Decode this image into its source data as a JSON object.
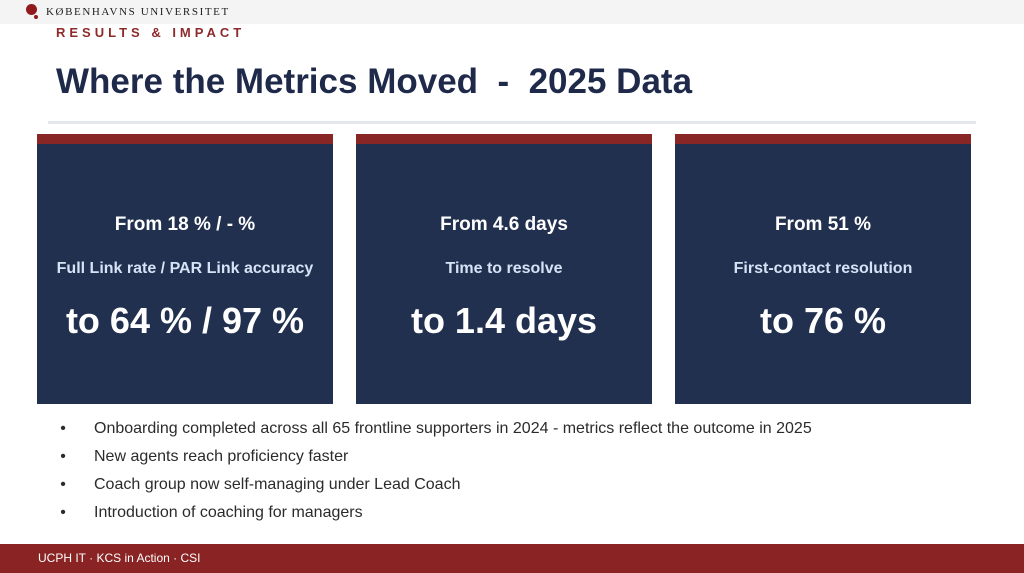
{
  "header": {
    "logo_text": "KØBENHAVNS UNIVERSITET",
    "kicker": "RESULTS & IMPACT",
    "title": "Where the Metrics Moved  -  2025 Data"
  },
  "cards": [
    {
      "from": "From 18 % / - %",
      "metric": "Full Link rate / PAR Link accuracy",
      "to": "to 64 % / 97 %"
    },
    {
      "from": "From 4.6 days",
      "metric": "Time to resolve",
      "to": "to 1.4 days"
    },
    {
      "from": "From 51 %",
      "metric": "First-contact resolution",
      "to": "to 76 %"
    }
  ],
  "bullet_char": "•",
  "bullets": [
    "Onboarding completed across all 65 frontline supporters in 2024 - metrics reflect the outcome in 2025",
    "New agents reach proficiency faster",
    "Coach group now self-managing under Lead Coach",
    "Introduction of coaching for managers"
  ],
  "footer": {
    "text": "UCPH IT ·  KCS in Action  ·  CSI"
  },
  "colors": {
    "accent_red": "#882626",
    "card_navy": "#22304f",
    "title_navy": "#1f2a4a"
  }
}
